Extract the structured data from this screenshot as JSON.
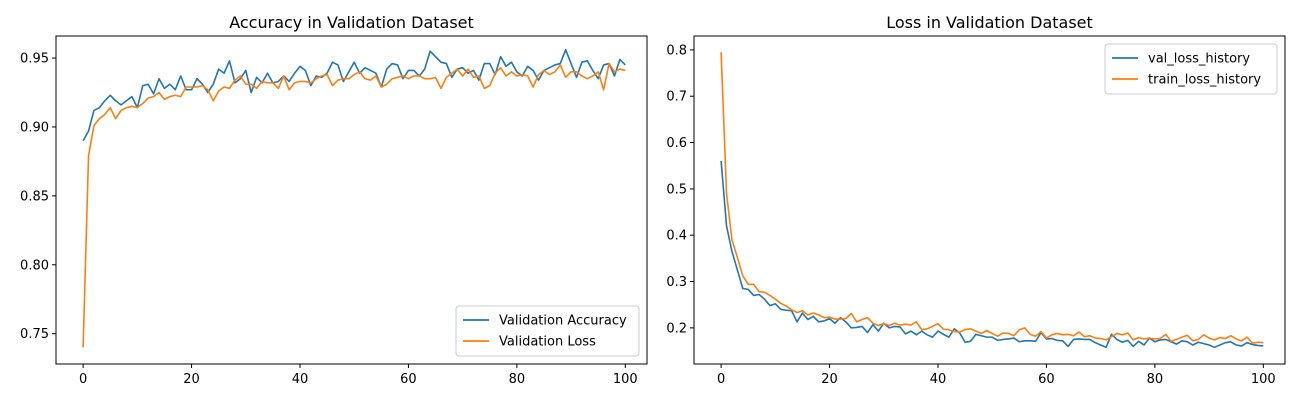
{
  "chart_data": [
    {
      "type": "line",
      "title": "Accuracy in Validation Dataset",
      "xlabel": "",
      "ylabel": "",
      "xlim": [
        -5,
        104
      ],
      "ylim": [
        0.728,
        0.966
      ],
      "xticks": [
        0,
        20,
        40,
        60,
        80,
        100
      ],
      "yticks": [
        0.75,
        0.8,
        0.85,
        0.9,
        0.95
      ],
      "ytick_labels": [
        "0.75",
        "0.80",
        "0.85",
        "0.90",
        "0.95"
      ],
      "legend_position": "lower-right",
      "grid": false,
      "series": [
        {
          "name": "Validation Accuracy",
          "color": "#1f77b4",
          "values": [
            0.89,
            0.897,
            0.912,
            0.914,
            0.919,
            0.923,
            0.919,
            0.916,
            0.919,
            0.922,
            0.914,
            0.93,
            0.931,
            0.924,
            0.935,
            0.928,
            0.931,
            0.927,
            0.937,
            0.927,
            0.927,
            0.935,
            0.931,
            0.925,
            0.931,
            0.942,
            0.939,
            0.948,
            0.932,
            0.935,
            0.941,
            0.925,
            0.936,
            0.932,
            0.939,
            0.932,
            0.933,
            0.937,
            0.933,
            0.939,
            0.944,
            0.941,
            0.93,
            0.937,
            0.936,
            0.939,
            0.947,
            0.945,
            0.933,
            0.94,
            0.947,
            0.939,
            0.943,
            0.941,
            0.939,
            0.929,
            0.942,
            0.946,
            0.945,
            0.935,
            0.941,
            0.941,
            0.937,
            0.942,
            0.955,
            0.951,
            0.947,
            0.946,
            0.936,
            0.942,
            0.943,
            0.939,
            0.941,
            0.934,
            0.946,
            0.946,
            0.938,
            0.951,
            0.944,
            0.947,
            0.94,
            0.937,
            0.944,
            0.941,
            0.934,
            0.941,
            0.943,
            0.945,
            0.946,
            0.956,
            0.946,
            0.936,
            0.947,
            0.948,
            0.941,
            0.935,
            0.945,
            0.946,
            0.937,
            0.949,
            0.945
          ]
        },
        {
          "name": "Validation Loss",
          "color": "#ff7f0e",
          "values": [
            0.74,
            0.879,
            0.901,
            0.906,
            0.909,
            0.914,
            0.906,
            0.912,
            0.914,
            0.915,
            0.914,
            0.917,
            0.921,
            0.922,
            0.925,
            0.92,
            0.922,
            0.923,
            0.922,
            0.929,
            0.929,
            0.929,
            0.93,
            0.927,
            0.919,
            0.926,
            0.929,
            0.928,
            0.934,
            0.937,
            0.931,
            0.931,
            0.928,
            0.933,
            0.932,
            0.932,
            0.928,
            0.937,
            0.927,
            0.932,
            0.933,
            0.933,
            0.932,
            0.935,
            0.937,
            0.938,
            0.93,
            0.934,
            0.935,
            0.935,
            0.938,
            0.94,
            0.935,
            0.934,
            0.937,
            0.929,
            0.931,
            0.935,
            0.936,
            0.937,
            0.935,
            0.937,
            0.937,
            0.935,
            0.935,
            0.936,
            0.928,
            0.936,
            0.939,
            0.942,
            0.937,
            0.942,
            0.936,
            0.937,
            0.928,
            0.93,
            0.939,
            0.943,
            0.937,
            0.94,
            0.937,
            0.938,
            0.937,
            0.929,
            0.938,
            0.941,
            0.938,
            0.94,
            0.945,
            0.936,
            0.94,
            0.94,
            0.937,
            0.935,
            0.937,
            0.94,
            0.927,
            0.946,
            0.94,
            0.942,
            0.941
          ]
        }
      ]
    },
    {
      "type": "line",
      "title": "Loss in Validation Dataset",
      "xlabel": "",
      "ylabel": "",
      "xlim": [
        -5,
        104
      ],
      "ylim": [
        0.122,
        0.83
      ],
      "xticks": [
        0,
        20,
        40,
        60,
        80,
        100
      ],
      "yticks": [
        0.2,
        0.3,
        0.4,
        0.5,
        0.6,
        0.7,
        0.8
      ],
      "ytick_labels": [
        "0.2",
        "0.3",
        "0.4",
        "0.5",
        "0.6",
        "0.7",
        "0.8"
      ],
      "legend_position": "upper-right",
      "grid": false,
      "series": [
        {
          "name": "val_loss_history",
          "color": "#1f77b4",
          "values": [
            0.56,
            0.42,
            0.365,
            0.325,
            0.285,
            0.283,
            0.27,
            0.272,
            0.262,
            0.248,
            0.252,
            0.24,
            0.238,
            0.237,
            0.213,
            0.232,
            0.218,
            0.225,
            0.213,
            0.215,
            0.22,
            0.21,
            0.222,
            0.213,
            0.2,
            0.201,
            0.203,
            0.19,
            0.207,
            0.193,
            0.21,
            0.2,
            0.203,
            0.202,
            0.187,
            0.193,
            0.185,
            0.193,
            0.185,
            0.18,
            0.193,
            0.186,
            0.18,
            0.198,
            0.189,
            0.169,
            0.171,
            0.186,
            0.183,
            0.18,
            0.18,
            0.173,
            0.175,
            0.176,
            0.178,
            0.17,
            0.172,
            0.172,
            0.171,
            0.19,
            0.176,
            0.177,
            0.173,
            0.172,
            0.16,
            0.175,
            0.176,
            0.175,
            0.175,
            0.168,
            0.163,
            0.158,
            0.186,
            0.175,
            0.169,
            0.173,
            0.16,
            0.171,
            0.163,
            0.178,
            0.17,
            0.174,
            0.175,
            0.17,
            0.165,
            0.172,
            0.17,
            0.163,
            0.169,
            0.166,
            0.163,
            0.158,
            0.163,
            0.168,
            0.17,
            0.163,
            0.161,
            0.168,
            0.164,
            0.162,
            0.161
          ]
        },
        {
          "name": "train_loss_history",
          "color": "#ff7f0e",
          "values": [
            0.795,
            0.49,
            0.39,
            0.352,
            0.312,
            0.294,
            0.294,
            0.278,
            0.277,
            0.27,
            0.262,
            0.253,
            0.247,
            0.239,
            0.233,
            0.237,
            0.228,
            0.232,
            0.228,
            0.222,
            0.223,
            0.219,
            0.219,
            0.22,
            0.231,
            0.213,
            0.218,
            0.222,
            0.21,
            0.205,
            0.209,
            0.205,
            0.21,
            0.206,
            0.208,
            0.206,
            0.213,
            0.196,
            0.198,
            0.203,
            0.209,
            0.197,
            0.196,
            0.192,
            0.191,
            0.196,
            0.198,
            0.193,
            0.188,
            0.194,
            0.188,
            0.182,
            0.189,
            0.188,
            0.183,
            0.196,
            0.2,
            0.186,
            0.182,
            0.192,
            0.178,
            0.185,
            0.188,
            0.185,
            0.186,
            0.183,
            0.191,
            0.181,
            0.183,
            0.178,
            0.177,
            0.174,
            0.181,
            0.188,
            0.185,
            0.189,
            0.174,
            0.179,
            0.176,
            0.178,
            0.176,
            0.177,
            0.186,
            0.171,
            0.175,
            0.18,
            0.184,
            0.172,
            0.175,
            0.185,
            0.178,
            0.174,
            0.179,
            0.177,
            0.183,
            0.176,
            0.172,
            0.18,
            0.167,
            0.169,
            0.168
          ]
        }
      ]
    }
  ]
}
